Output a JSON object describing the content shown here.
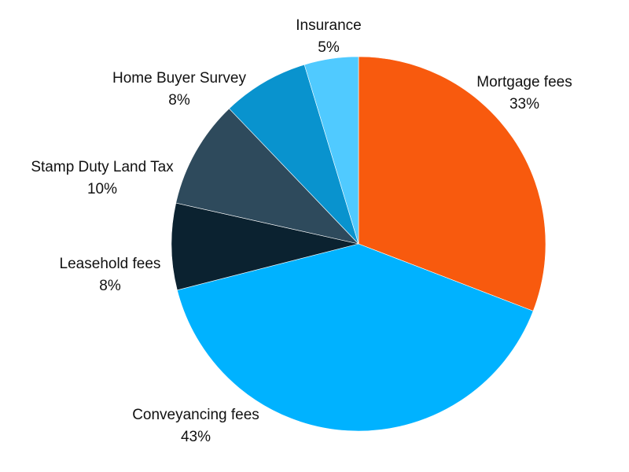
{
  "chart_data": {
    "type": "pie",
    "title": "",
    "start": "top, clockwise",
    "slices": [
      {
        "label": "Mortgage fees",
        "value": 33,
        "display": "33%",
        "color": "#F85A0E"
      },
      {
        "label": "Conveyancing fees",
        "value": 43,
        "display": "43%",
        "color": "#00B2FF"
      },
      {
        "label": "Leasehold fees",
        "value": 8,
        "display": "8%",
        "color": "#0B2230"
      },
      {
        "label": "Stamp Duty Land Tax",
        "value": 10,
        "display": "10%",
        "color": "#2E4A5C"
      },
      {
        "label": "Home Buyer Survey",
        "value": 8,
        "display": "8%",
        "color": "#0993CE"
      },
      {
        "label": "Insurance",
        "value": 5,
        "display": "5%",
        "color": "#50CAFF"
      }
    ]
  }
}
